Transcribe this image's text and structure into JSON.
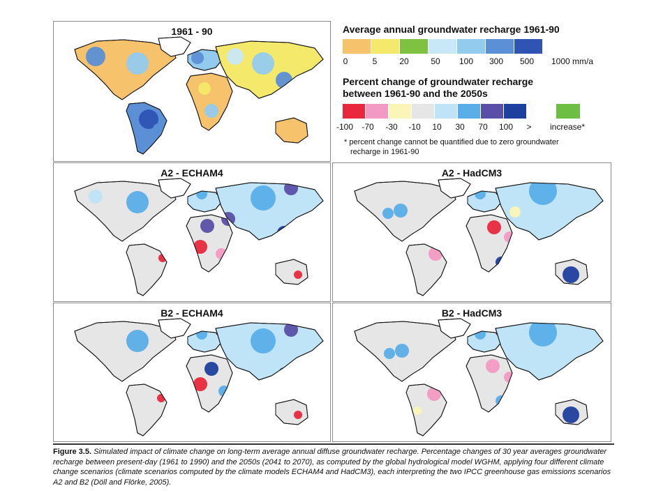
{
  "panels": [
    {
      "title": "1961 - 90",
      "key": "baseline"
    },
    {
      "title": "A2 - ECHAM4",
      "key": "a2e"
    },
    {
      "title": "A2 - HadCM3",
      "key": "a2h"
    },
    {
      "title": "B2 - ECHAM4",
      "key": "b2e"
    },
    {
      "title": "B2 - HadCM3",
      "key": "b2h"
    }
  ],
  "legend1": {
    "title": "Average annual groundwater recharge 1961-90",
    "ticks": [
      "0",
      "5",
      "20",
      "50",
      "100",
      "300",
      "500",
      "1000 mm/a"
    ],
    "colors": [
      "#f6c26b",
      "#f4e96a",
      "#7fc241",
      "#c9e8f7",
      "#93cbef",
      "#5b8fd6",
      "#2f54b4"
    ]
  },
  "legend2": {
    "title_line1": "Percent change of groundwater recharge",
    "title_line2": "between 1961-90 and the 2050s",
    "ticks": [
      "-100",
      "-70",
      "-30",
      "-10",
      "10",
      "30",
      "70",
      "100",
      ">"
    ],
    "colors": [
      "#e8283c",
      "#f29ac3",
      "#fbf5b6",
      "#e6e6e6",
      "#bfe3f7",
      "#5aaee8",
      "#5a4fa8",
      "#1d3f9e"
    ],
    "increase_label": "increase*",
    "increase_color": "#6dbf43",
    "note_line1": "* percent change cannot be quantified due to zero groundwater",
    "note_line2": "recharge in 1961-90"
  },
  "caption": {
    "label": "Figure 3.5.",
    "text": "Simulated impact of climate change on long-term average annual diffuse groundwater recharge. Percentage changes of 30 year averages groundwater recharge between present-day (1961 to 1990) and the 2050s (2041 to 2070), as computed by the global hydrological model WGHM, applying four different climate change scenarios (climate scenarios computed by the climate models ECHAM4 and HadCM3), each interpreting the two IPCC greenhouse gas emissions scenarios A2 and B2 (Döll and Flörke, 2005)."
  }
}
